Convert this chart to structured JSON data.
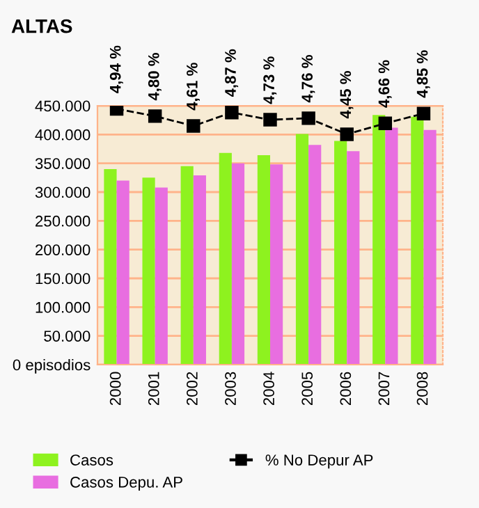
{
  "chart_data": {
    "type": "bar",
    "title": "ALTAS",
    "categories": [
      "2000",
      "2001",
      "2002",
      "2003",
      "2004",
      "2005",
      "2006",
      "2007",
      "2008"
    ],
    "series": [
      {
        "name": "Casos",
        "color": "#8ef21f",
        "values": [
          340000,
          325000,
          345000,
          368000,
          364000,
          401000,
          389000,
          434000,
          431000
        ]
      },
      {
        "name": "Casos Depu. AP",
        "color": "#e86ee0",
        "values": [
          320000,
          308000,
          329000,
          350000,
          348000,
          382000,
          371000,
          412000,
          408000
        ]
      },
      {
        "name": "% No Depur AP",
        "type": "line",
        "axis": "y2",
        "color": "#000000",
        "marker": "square",
        "line_style": "dashed",
        "values": [
          4.94,
          4.8,
          4.61,
          4.87,
          4.73,
          4.76,
          4.45,
          4.66,
          4.85
        ],
        "value_labels": [
          "4,94 %",
          "4,80 %",
          "4,61 %",
          "4,87 %",
          "4,73 %",
          "4,76 %",
          "4,45 %",
          "4,66 %",
          "4,85 %"
        ]
      }
    ],
    "ylim": [
      0,
      450000
    ],
    "yticks": [
      {
        "value": 0,
        "label": "0 episodios"
      },
      {
        "value": 50000,
        "label": "50.000"
      },
      {
        "value": 100000,
        "label": "100.000"
      },
      {
        "value": 150000,
        "label": "150.000"
      },
      {
        "value": 200000,
        "label": "200.000"
      },
      {
        "value": 250000,
        "label": "250.000"
      },
      {
        "value": 300000,
        "label": "300.000"
      },
      {
        "value": 350000,
        "label": "350.000"
      },
      {
        "value": 400000,
        "label": "400.000"
      },
      {
        "value": 450000,
        "label": "450.000"
      }
    ],
    "y2lim": [
      0,
      5
    ],
    "tick_labels": "xy",
    "grid": "y",
    "legend": "bottom"
  }
}
